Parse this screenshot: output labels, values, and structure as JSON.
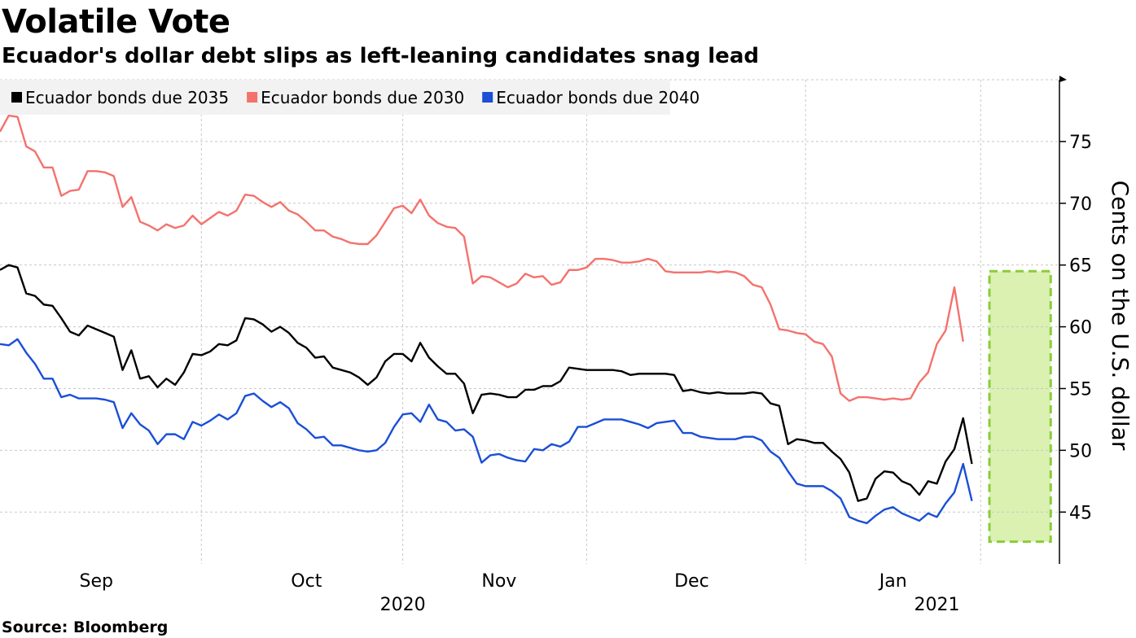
{
  "header": {
    "title": "Volatile Vote",
    "subtitle": "Ecuador's dollar debt slips as left-leaning candidates snag lead"
  },
  "footer": {
    "source": "Source: Bloomberg"
  },
  "chart_data": {
    "type": "line",
    "title": "Volatile Vote",
    "subtitle": "Ecuador's dollar debt slips as left-leaning candidates snag lead",
    "xlabel": "",
    "ylabel": "Cents on the U.S. dollar",
    "ylim": [
      40.8,
      80
    ],
    "yticks": [
      45,
      50,
      55,
      60,
      65,
      70,
      75
    ],
    "y_axis_side": "right",
    "grid": true,
    "legend": "top-left",
    "x_index_range": [
      0,
      121
    ],
    "x_month_labels": [
      {
        "label": "Sep",
        "index": 11
      },
      {
        "label": "Oct",
        "index": 35
      },
      {
        "label": "Nov",
        "index": 57
      },
      {
        "label": "Dec",
        "index": 79
      },
      {
        "label": "Jan",
        "index": 102
      }
    ],
    "x_year_labels": [
      {
        "label": "2020",
        "index": 46
      },
      {
        "label": "2021",
        "index": 107
      }
    ],
    "x_gridlines_index": [
      23,
      46,
      67,
      92,
      112
    ],
    "highlight_index_range": [
      113,
      120
    ],
    "highlight_y_range": [
      42.6,
      64.5
    ],
    "colors": {
      "due_2035": "#000000",
      "due_2030": "#f4726d",
      "due_2040": "#1a4fd6",
      "highlight_fill": "#d6f0a8",
      "highlight_border": "#8ccb3c"
    },
    "series": [
      {
        "name": "Ecuador bonds due 2035",
        "key": "due_2035",
        "values": [
          64.6,
          65.0,
          64.8,
          62.7,
          62.5,
          61.8,
          61.7,
          60.7,
          59.6,
          59.3,
          60.1,
          59.8,
          59.5,
          59.2,
          56.5,
          58.1,
          55.8,
          56.0,
          55.1,
          55.8,
          55.3,
          56.3,
          57.8,
          57.7,
          58.0,
          58.6,
          58.5,
          58.9,
          60.7,
          60.6,
          60.2,
          59.6,
          60.0,
          59.5,
          58.7,
          58.3,
          57.5,
          57.6,
          56.7,
          56.5,
          56.3,
          55.9,
          55.3,
          55.9,
          57.2,
          57.8,
          57.8,
          57.2,
          58.7,
          57.5,
          56.8,
          56.2,
          56.2,
          55.4,
          53.0,
          54.5,
          54.6,
          54.5,
          54.3,
          54.3,
          54.9,
          54.9,
          55.2,
          55.2,
          55.6,
          56.7,
          56.6,
          56.5,
          56.5,
          56.5,
          56.5,
          56.4,
          56.1,
          56.2,
          56.2,
          56.2,
          56.2,
          56.1,
          54.8,
          54.9,
          54.7,
          54.6,
          54.7,
          54.6,
          54.6,
          54.6,
          54.7,
          54.6,
          53.8,
          53.6,
          50.5,
          50.9,
          50.8,
          50.6,
          50.6,
          49.9,
          49.3,
          48.2,
          45.9,
          46.1,
          47.7,
          48.3,
          48.2,
          47.5,
          47.2,
          46.4,
          47.5,
          47.3,
          49.1,
          50.1,
          52.6,
          48.9
        ]
      },
      {
        "name": "Ecuador bonds due 2030",
        "key": "due_2030",
        "values": [
          75.8,
          77.1,
          77.0,
          74.6,
          74.2,
          72.9,
          72.9,
          70.6,
          71.0,
          71.1,
          72.6,
          72.6,
          72.5,
          72.2,
          69.7,
          70.5,
          68.5,
          68.2,
          67.8,
          68.3,
          68.0,
          68.2,
          69.0,
          68.3,
          68.8,
          69.3,
          69.0,
          69.4,
          70.7,
          70.6,
          70.1,
          69.7,
          70.1,
          69.4,
          69.1,
          68.5,
          67.8,
          67.8,
          67.3,
          67.1,
          66.8,
          66.7,
          66.7,
          67.4,
          68.5,
          69.6,
          69.8,
          69.2,
          70.3,
          69.0,
          68.4,
          68.1,
          68.0,
          67.3,
          63.5,
          64.1,
          64.0,
          63.6,
          63.2,
          63.5,
          64.3,
          64.0,
          64.1,
          63.4,
          63.6,
          64.6,
          64.6,
          64.8,
          65.5,
          65.5,
          65.4,
          65.2,
          65.2,
          65.3,
          65.5,
          65.3,
          64.5,
          64.4,
          64.4,
          64.4,
          64.4,
          64.5,
          64.4,
          64.5,
          64.4,
          64.1,
          63.4,
          63.2,
          61.8,
          59.8,
          59.7,
          59.5,
          59.4,
          58.8,
          58.6,
          57.6,
          54.6,
          54.0,
          54.3,
          54.3,
          54.2,
          54.1,
          54.2,
          54.1,
          54.2,
          55.5,
          56.3,
          58.6,
          59.7,
          63.2,
          58.8
        ]
      },
      {
        "name": "Ecuador bonds due 2040",
        "key": "due_2040",
        "values": [
          58.6,
          58.5,
          59.0,
          57.9,
          57.0,
          55.8,
          55.8,
          54.3,
          54.5,
          54.2,
          54.2,
          54.2,
          54.1,
          53.9,
          51.8,
          53.0,
          52.1,
          51.6,
          50.5,
          51.3,
          51.3,
          50.9,
          52.3,
          52.0,
          52.4,
          52.9,
          52.5,
          53.0,
          54.4,
          54.6,
          54.0,
          53.5,
          53.9,
          53.4,
          52.2,
          51.7,
          51.0,
          51.1,
          50.4,
          50.4,
          50.2,
          50.0,
          49.9,
          50.0,
          50.6,
          51.9,
          52.9,
          53.0,
          52.3,
          53.7,
          52.5,
          52.3,
          51.6,
          51.7,
          51.1,
          49.0,
          49.6,
          49.7,
          49.4,
          49.2,
          49.1,
          50.1,
          50.0,
          50.5,
          50.3,
          50.7,
          51.9,
          51.9,
          52.2,
          52.5,
          52.5,
          52.5,
          52.3,
          52.1,
          51.8,
          52.2,
          52.3,
          52.4,
          51.4,
          51.4,
          51.1,
          51.0,
          50.9,
          50.9,
          50.9,
          51.1,
          51.1,
          50.8,
          49.9,
          49.4,
          48.3,
          47.3,
          47.1,
          47.1,
          47.1,
          46.7,
          46.1,
          44.6,
          44.3,
          44.1,
          44.7,
          45.2,
          45.4,
          44.9,
          44.6,
          44.3,
          44.9,
          44.6,
          45.7,
          46.6,
          48.9,
          45.9
        ]
      }
    ]
  }
}
